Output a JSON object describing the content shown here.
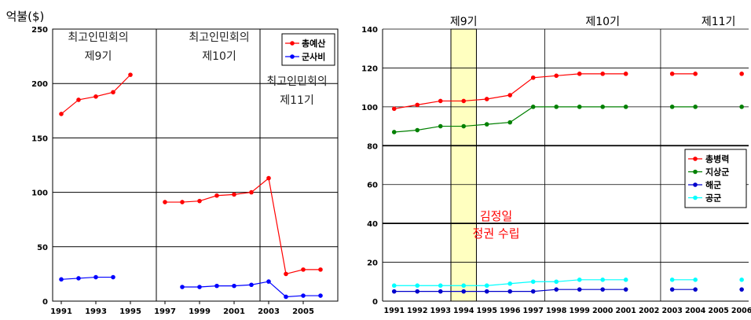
{
  "chart_data": [
    {
      "type": "line",
      "ylabel": "억불($)",
      "ylim": [
        0,
        250
      ],
      "yticks": [
        0,
        50,
        100,
        150,
        200,
        250
      ],
      "xlim": [
        1990.5,
        2007
      ],
      "xticks": [
        1991,
        1993,
        1995,
        1997,
        1999,
        2001,
        2003,
        2005
      ],
      "grid": "horizontal",
      "legend_position": "top-right",
      "series": [
        {
          "name": "총예산",
          "color": "#ff0000",
          "x": [
            1991,
            1992,
            1993,
            1994,
            1995,
            1997,
            1998,
            1999,
            2000,
            2001,
            2002,
            2003,
            2004,
            2005,
            2006
          ],
          "y": [
            172,
            185,
            188,
            192,
            208,
            91,
            91,
            92,
            97,
            98,
            100,
            113,
            25,
            29,
            29
          ]
        },
        {
          "name": "군사비",
          "color": "#0000ff",
          "x": [
            1991,
            1992,
            1993,
            1994,
            1998,
            1999,
            2000,
            2001,
            2002,
            2003,
            2004,
            2005,
            2006
          ],
          "y": [
            20,
            21,
            22,
            22,
            13,
            13,
            14,
            14,
            15,
            18,
            4,
            5,
            5
          ]
        }
      ],
      "dividers_x": [
        1996.5,
        2002.5
      ],
      "annotations": [
        {
          "lines": [
            "최고인민회의",
            "제9기"
          ]
        },
        {
          "lines": [
            "최고인민회의",
            "제10기"
          ]
        },
        {
          "lines": [
            "최고인민회의",
            "제11기"
          ]
        }
      ]
    },
    {
      "type": "line",
      "ylim": [
        0,
        140
      ],
      "yticks": [
        0,
        20,
        40,
        60,
        80,
        100,
        120,
        140
      ],
      "categories": [
        "1991",
        "1992",
        "1993",
        "1994",
        "1995",
        "1996",
        "1997",
        "1998",
        "1999",
        "2000",
        "2001",
        "2002",
        "2003",
        "2004",
        "2005",
        "2006"
      ],
      "grid": "horizontal",
      "legend_position": "middle-right",
      "series": [
        {
          "name": "총병력",
          "color": "#ff0000",
          "values": [
            99,
            101,
            103,
            103,
            104,
            106,
            115,
            116,
            117,
            117,
            117,
            null,
            117,
            117,
            null,
            117
          ]
        },
        {
          "name": "지상군",
          "color": "#008000",
          "values": [
            87,
            88,
            90,
            90,
            91,
            92,
            100,
            100,
            100,
            100,
            100,
            null,
            100,
            100,
            null,
            100
          ]
        },
        {
          "name": "해군",
          "color": "#0000cc",
          "values": [
            5,
            5,
            5,
            5,
            5,
            5,
            5,
            6,
            6,
            6,
            6,
            null,
            6,
            6,
            null,
            6
          ]
        },
        {
          "name": "공군",
          "color": "#00ffff",
          "values": [
            8,
            8,
            8,
            8,
            8,
            9,
            10,
            10,
            11,
            11,
            11,
            null,
            11,
            11,
            null,
            11
          ]
        }
      ],
      "highlight_category": "1994",
      "highlight_color": "#ffffc0",
      "period_labels": [
        "제9기",
        "제10기",
        "제11기"
      ],
      "annotation": {
        "lines": [
          "김정일",
          "정권 수립"
        ],
        "color": "#ff0000"
      }
    }
  ]
}
